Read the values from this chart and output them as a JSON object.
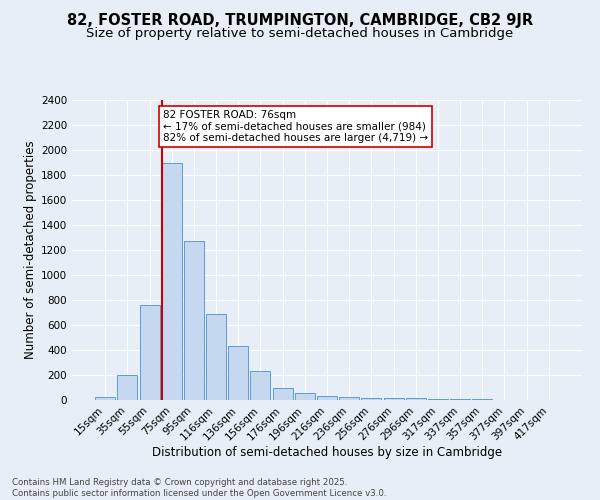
{
  "title": "82, FOSTER ROAD, TRUMPINGTON, CAMBRIDGE, CB2 9JR",
  "subtitle": "Size of property relative to semi-detached houses in Cambridge",
  "xlabel": "Distribution of semi-detached houses by size in Cambridge",
  "ylabel": "Number of semi-detached properties",
  "footer1": "Contains HM Land Registry data © Crown copyright and database right 2025.",
  "footer2": "Contains public sector information licensed under the Open Government Licence v3.0.",
  "bar_labels": [
    "15sqm",
    "35sqm",
    "55sqm",
    "75sqm",
    "95sqm",
    "116sqm",
    "136sqm",
    "156sqm",
    "176sqm",
    "196sqm",
    "216sqm",
    "236sqm",
    "256sqm",
    "276sqm",
    "296sqm",
    "317sqm",
    "337sqm",
    "357sqm",
    "377sqm",
    "397sqm",
    "417sqm"
  ],
  "bar_values": [
    25,
    200,
    760,
    1900,
    1270,
    690,
    435,
    230,
    100,
    60,
    35,
    25,
    20,
    18,
    15,
    10,
    8,
    5,
    3,
    2,
    1
  ],
  "bar_color": "#c5d8f0",
  "bar_edge_color": "#5b9bd5",
  "highlight_index": 3,
  "highlight_line_color": "#cc0000",
  "annotation_line1": "82 FOSTER ROAD: 76sqm",
  "annotation_line2": "← 17% of semi-detached houses are smaller (984)",
  "annotation_line3": "82% of semi-detached houses are larger (4,719) →",
  "annotation_box_color": "#ffffff",
  "annotation_box_edge": "#cc0000",
  "ylim": [
    0,
    2400
  ],
  "yticks": [
    0,
    200,
    400,
    600,
    800,
    1000,
    1200,
    1400,
    1600,
    1800,
    2000,
    2200,
    2400
  ],
  "bg_color": "#e8eef7",
  "plot_bg_color": "#e8eef7",
  "title_fontsize": 10.5,
  "subtitle_fontsize": 9.5,
  "axis_fontsize": 8.5,
  "tick_fontsize": 7.5,
  "annotation_fontsize": 7.5,
  "footer_fontsize": 6.2
}
